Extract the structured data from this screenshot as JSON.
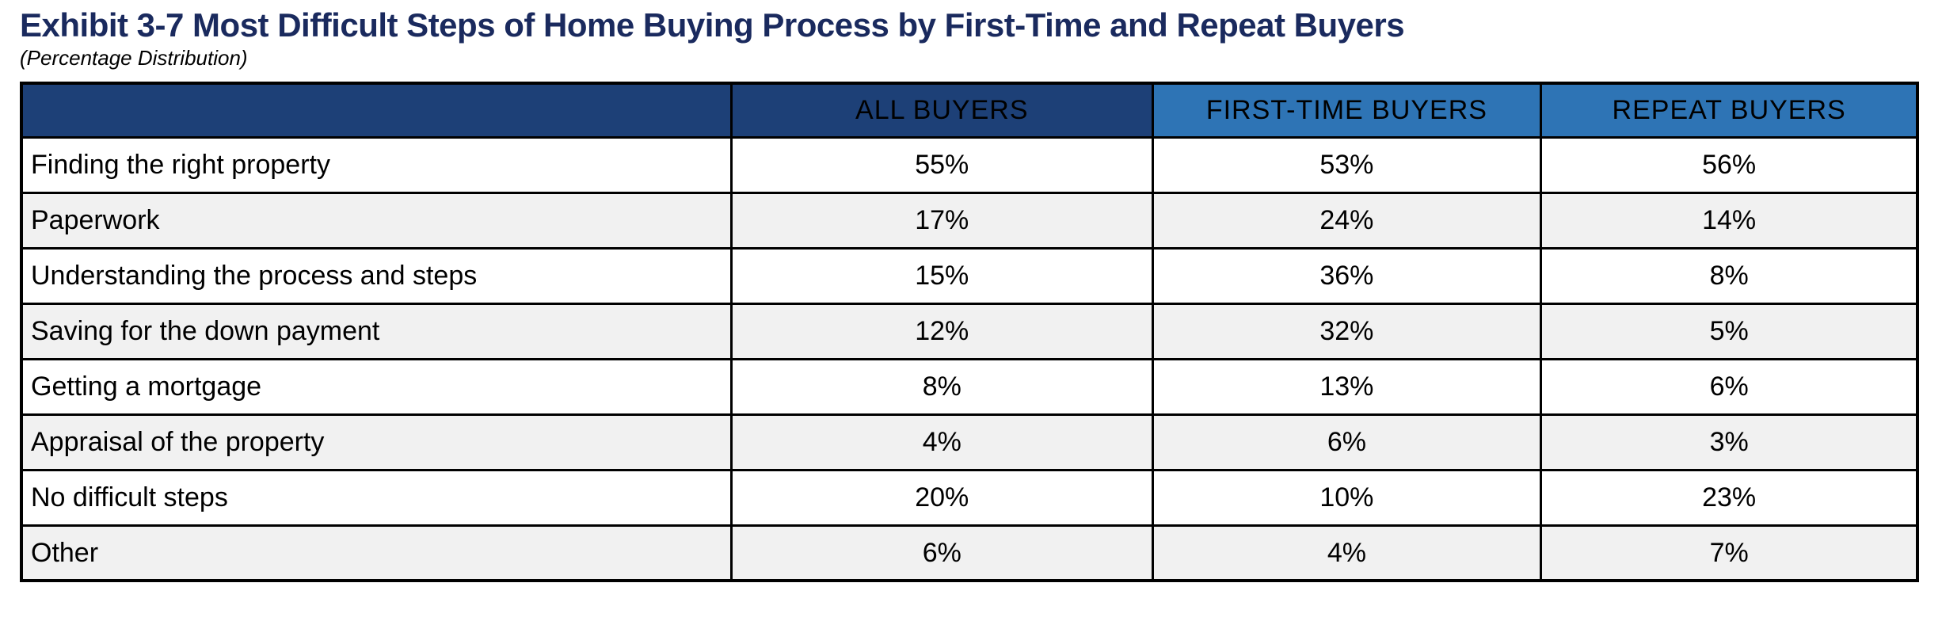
{
  "page": {
    "title": "Exhibit 3-7 Most Difficult Steps of Home Buying Process by First-Time and Repeat Buyers",
    "subtitle": "(Percentage Distribution)"
  },
  "table": {
    "columns": [
      "",
      "ALL BUYERS",
      "FIRST-TIME BUYERS",
      "REPEAT BUYERS"
    ],
    "rows": [
      {
        "label": "Finding the right property",
        "all_buyers": "55%",
        "first_time_buyers": "53%",
        "repeat_buyers": "56%"
      },
      {
        "label": "Paperwork",
        "all_buyers": "17%",
        "first_time_buyers": "24%",
        "repeat_buyers": "14%"
      },
      {
        "label": "Understanding the process and steps",
        "all_buyers": "15%",
        "first_time_buyers": "36%",
        "repeat_buyers": "8%"
      },
      {
        "label": "Saving for the down payment",
        "all_buyers": "12%",
        "first_time_buyers": "32%",
        "repeat_buyers": "5%"
      },
      {
        "label": "Getting a mortgage",
        "all_buyers": "8%",
        "first_time_buyers": "13%",
        "repeat_buyers": "6%"
      },
      {
        "label": "Appraisal of the property",
        "all_buyers": "4%",
        "first_time_buyers": "6%",
        "repeat_buyers": "3%"
      },
      {
        "label": "No difficult steps",
        "all_buyers": "20%",
        "first_time_buyers": "10%",
        "repeat_buyers": "23%"
      },
      {
        "label": "Other",
        "all_buyers": "6%",
        "first_time_buyers": "4%",
        "repeat_buyers": "7%"
      }
    ]
  },
  "colors": {
    "title_navy": "#1a2a5e",
    "header_dark_blue": "#1d4077",
    "header_light_blue": "#2e74b5",
    "row_alt_gray": "#f1f1f1",
    "row_white": "#ffffff",
    "border_black": "#000000",
    "header_text": "#ffffff",
    "body_text": "#000000"
  },
  "chart_data": {
    "type": "table",
    "title": "Exhibit 3-7 Most Difficult Steps of Home Buying Process by First-Time and Repeat Buyers",
    "subtitle": "(Percentage Distribution)",
    "categories": [
      "Finding the right property",
      "Paperwork",
      "Understanding the process and steps",
      "Saving for the down payment",
      "Getting a mortgage",
      "Appraisal of the property",
      "No difficult steps",
      "Other"
    ],
    "series": [
      {
        "name": "ALL BUYERS",
        "values": [
          55,
          17,
          15,
          12,
          8,
          4,
          20,
          6
        ]
      },
      {
        "name": "FIRST-TIME BUYERS",
        "values": [
          53,
          24,
          36,
          32,
          13,
          6,
          10,
          4
        ]
      },
      {
        "name": "REPEAT BUYERS",
        "values": [
          56,
          14,
          8,
          5,
          6,
          3,
          23,
          7
        ]
      }
    ],
    "unit": "percent"
  }
}
